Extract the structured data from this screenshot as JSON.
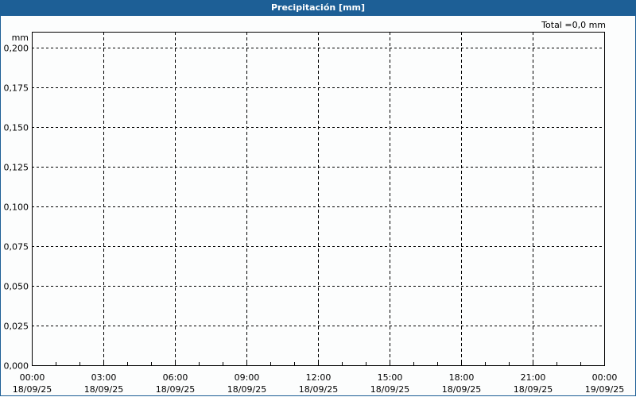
{
  "window": {
    "title": "Precipitación [mm]",
    "border_color": "#1d5f96"
  },
  "total_label": "Total =0,0 mm",
  "chart_data": {
    "type": "bar",
    "title": "Precipitación [mm]",
    "ylabel": "mm",
    "xlabel": "",
    "ylim": [
      0,
      0.21
    ],
    "yticks": [
      "0,000",
      "0,025",
      "0,050",
      "0,075",
      "0,100",
      "0,125",
      "0,150",
      "0,175",
      "0,200"
    ],
    "ytick_values": [
      0,
      0.025,
      0.05,
      0.075,
      0.1,
      0.125,
      0.15,
      0.175,
      0.2
    ],
    "xlim": [
      "18/09/25 00:00",
      "19/09/25 00:00"
    ],
    "xticks": [
      {
        "time": "00:00",
        "date": "18/09/25"
      },
      {
        "time": "03:00",
        "date": "18/09/25"
      },
      {
        "time": "06:00",
        "date": "18/09/25"
      },
      {
        "time": "09:00",
        "date": "18/09/25"
      },
      {
        "time": "12:00",
        "date": "18/09/25"
      },
      {
        "time": "15:00",
        "date": "18/09/25"
      },
      {
        "time": "18:00",
        "date": "18/09/25"
      },
      {
        "time": "21:00",
        "date": "18/09/25"
      },
      {
        "time": "00:00",
        "date": "19/09/25"
      }
    ],
    "values": [],
    "grid": true,
    "total": "0,0 mm"
  }
}
